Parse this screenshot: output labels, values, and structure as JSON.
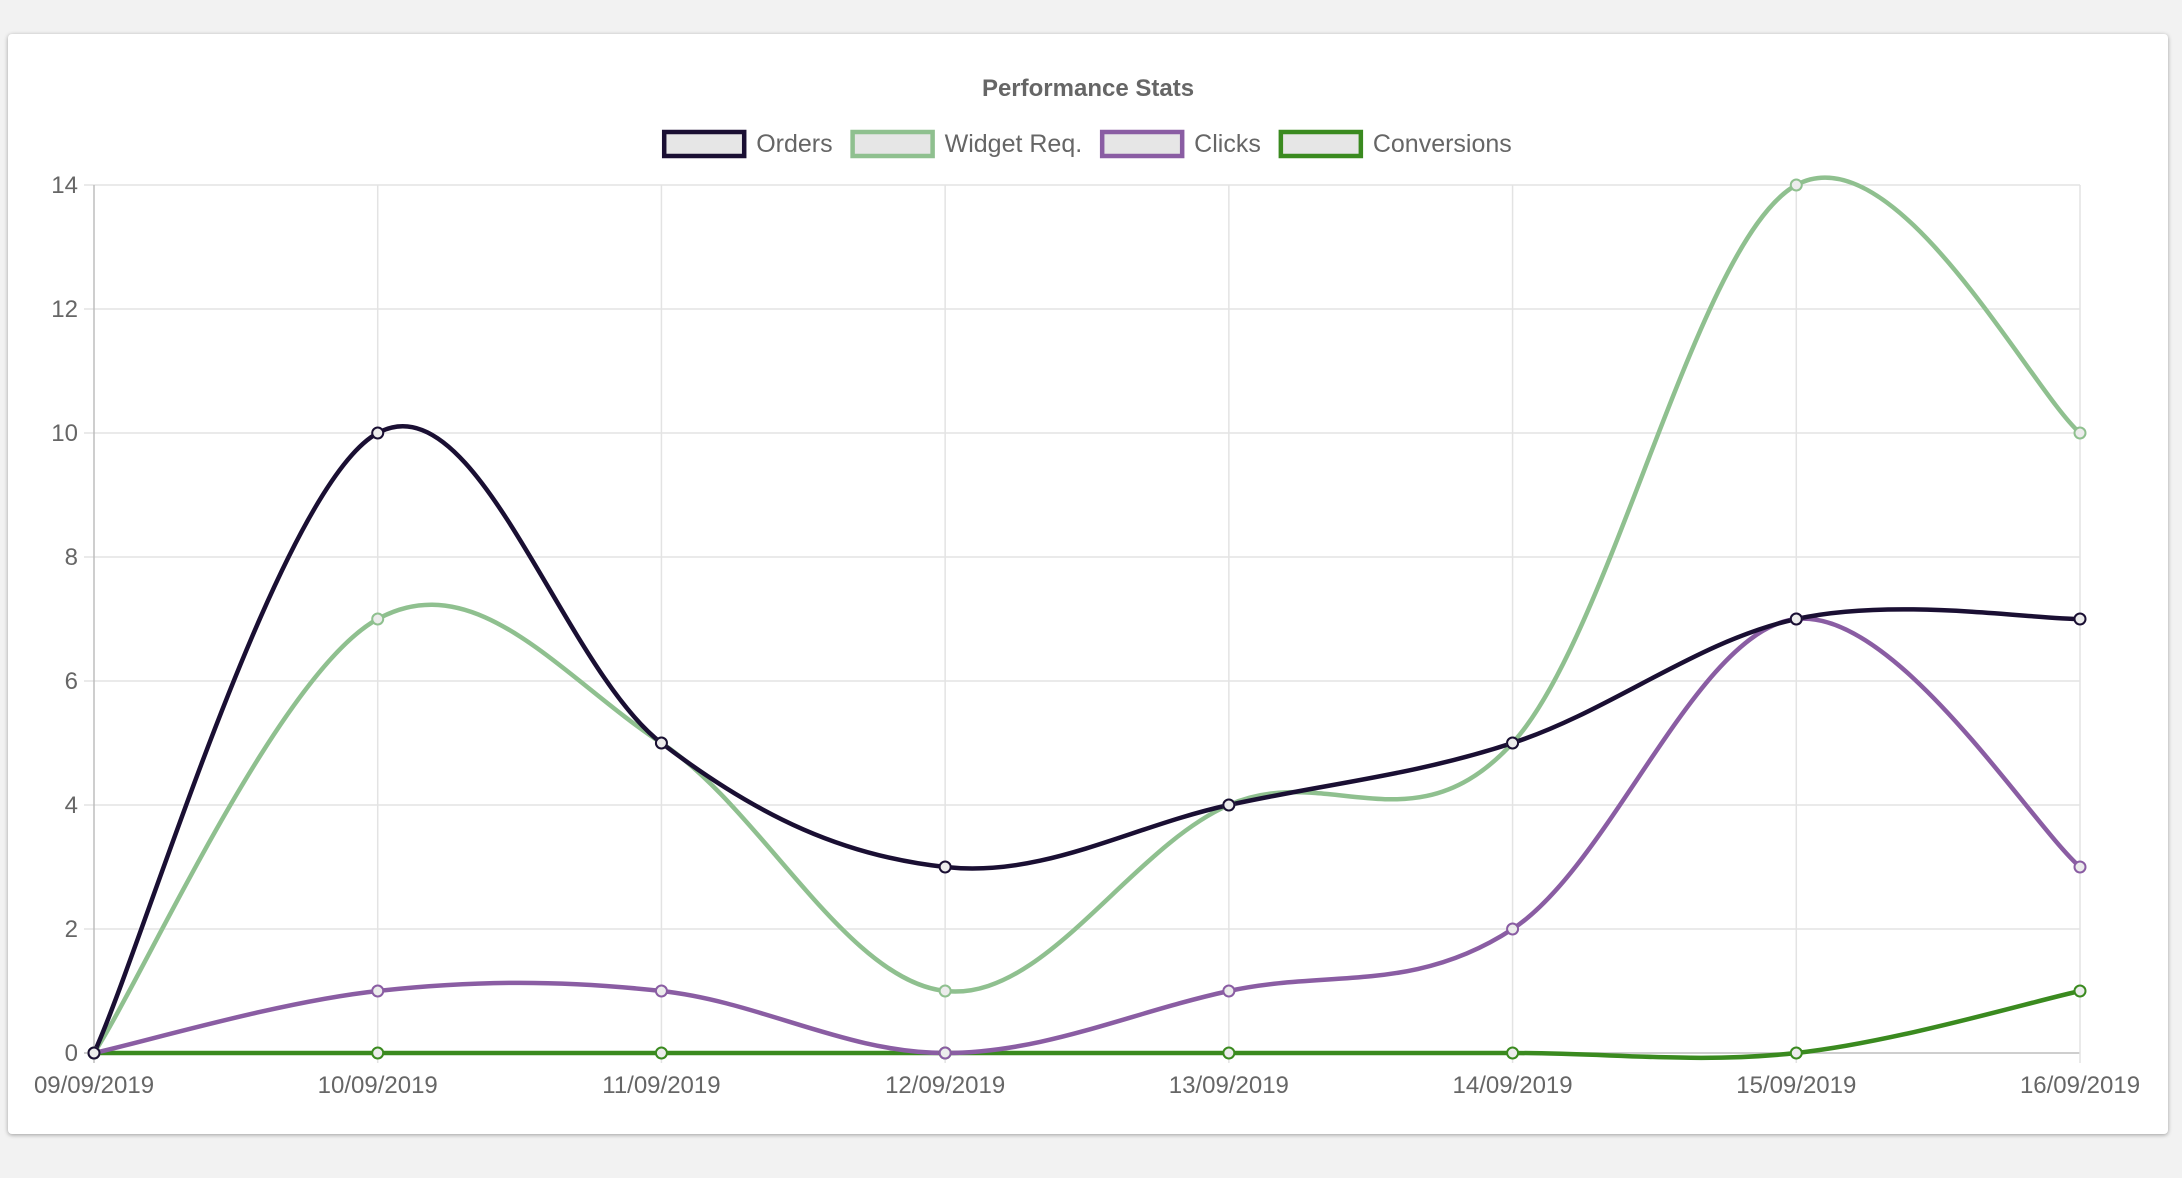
{
  "chart_data": {
    "type": "line",
    "title": "Performance Stats",
    "categories": [
      "09/09/2019",
      "10/09/2019",
      "11/09/2019",
      "12/09/2019",
      "13/09/2019",
      "14/09/2019",
      "15/09/2019",
      "16/09/2019"
    ],
    "ylim": [
      0,
      14
    ],
    "yticks": [
      0,
      2,
      4,
      6,
      8,
      10,
      12,
      14
    ],
    "grid": true,
    "legend_position": "top",
    "series": [
      {
        "name": "Orders",
        "color": "#1a0f33",
        "values": [
          0,
          10,
          5,
          3,
          4,
          5,
          7,
          7
        ]
      },
      {
        "name": "Widget Req.",
        "color": "#8fc08f",
        "values": [
          0,
          7,
          5,
          1,
          4,
          5,
          14,
          10
        ]
      },
      {
        "name": "Clicks",
        "color": "#8a5da3",
        "values": [
          0,
          1,
          1,
          0,
          1,
          2,
          7,
          3
        ]
      },
      {
        "name": "Conversions",
        "color": "#3a8a1f",
        "values": [
          0,
          0,
          0,
          0,
          0,
          0,
          0,
          1
        ]
      }
    ]
  }
}
